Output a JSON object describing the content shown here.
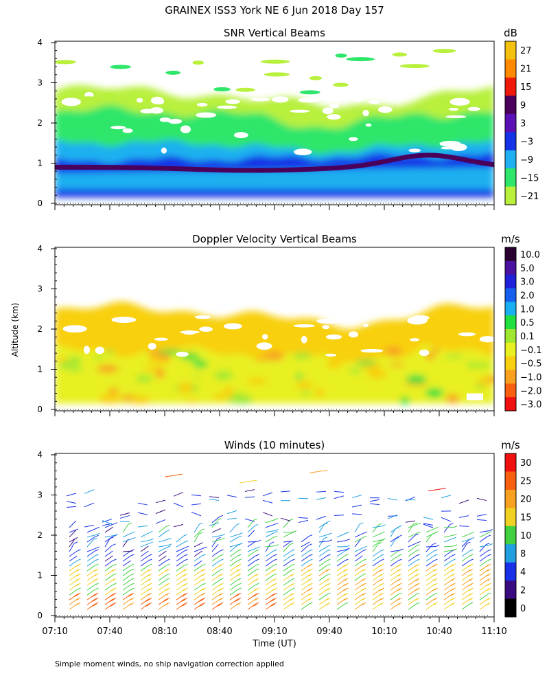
{
  "figure": {
    "title": "GRAINEX ISS3 York NE   6 Jun 2018 Day 157",
    "y_label": "Altitude (km)",
    "x_label": "Time (UT)",
    "footnote": "Simple moment winds, no ship navigation correction applied"
  },
  "chart_data": [
    {
      "type": "heatmap",
      "title": "SNR Vertical Beams",
      "xlabel": "Time (UT)",
      "ylabel": "Altitude (km)",
      "x_range": [
        "07:10",
        "11:10"
      ],
      "ylim": [
        0,
        4
      ],
      "y_ticks": [
        "0",
        "1",
        "2",
        "3",
        "4"
      ],
      "colorbar": {
        "unit": "dB",
        "levels": [
          "27",
          "21",
          "15",
          "9",
          "3",
          "−3",
          "−9",
          "−15",
          "−21"
        ],
        "colors": [
          "#f5c10f",
          "#ff8a00",
          "#f01a0a",
          "#4a005a",
          "#5a10b4",
          "#1432e6",
          "#1eb0f0",
          "#2ee66a",
          "#b8f03c"
        ]
      },
      "layers": [
        {
          "name": "near-surface band",
          "color": "#1432e6",
          "top_km": 0.35
        },
        {
          "name": "strong layer",
          "color": "#4a005a",
          "center_km": 0.9,
          "rising_to_km": 1.2,
          "at_time": "10:40"
        },
        {
          "name": "boundary layer",
          "color": "#1eb0f0",
          "top_km": 1.5
        },
        {
          "name": "mixed layer",
          "color": "#2ee66a",
          "top_km": 2.3
        },
        {
          "name": "weak echoes",
          "color": "#b8f03c",
          "top_km": 2.8
        }
      ]
    },
    {
      "type": "heatmap",
      "title": "Doppler Velocity Vertical Beams",
      "xlabel": "Time (UT)",
      "ylabel": "Altitude (km)",
      "x_range": [
        "07:10",
        "11:10"
      ],
      "ylim": [
        0,
        4
      ],
      "y_ticks": [
        "0",
        "1",
        "2",
        "3",
        "4"
      ],
      "colorbar": {
        "unit": "m/s",
        "levels": [
          "10.0",
          "5.0",
          "3.0",
          "2.0",
          "1.0",
          "0.5",
          "0.1",
          "−0.1",
          "−0.5",
          "−1.0",
          "−2.0",
          "−3.0"
        ],
        "colors": [
          "#2a0030",
          "#4a10a0",
          "#2020d8",
          "#1660f0",
          "#18b0f0",
          "#20e040",
          "#a0e830",
          "#e8f020",
          "#f8d010",
          "#f8a020",
          "#f86010",
          "#f01010"
        ]
      },
      "dominant_value_range": [
        "−0.5",
        "0.1"
      ]
    },
    {
      "type": "wind_barbs",
      "title": "Winds (10 minutes)",
      "xlabel": "Time (UT)",
      "ylabel": "Altitude (km)",
      "x_ticks": [
        "07:10",
        "07:40",
        "08:10",
        "08:40",
        "09:10",
        "09:40",
        "10:10",
        "10:40",
        "11:10"
      ],
      "ylim": [
        0,
        4
      ],
      "y_ticks": [
        "0",
        "1",
        "2",
        "3",
        "4"
      ],
      "n_profiles": 24,
      "colorbar": {
        "unit": "m/s",
        "levels": [
          "30",
          "25",
          "20",
          "15",
          "10",
          "8",
          "4",
          "2",
          "0"
        ],
        "colors": [
          "#f01010",
          "#f86010",
          "#f8a020",
          "#f0d020",
          "#40d040",
          "#20a0e0",
          "#1830e8",
          "#3a0a80",
          "#000000"
        ]
      }
    }
  ]
}
